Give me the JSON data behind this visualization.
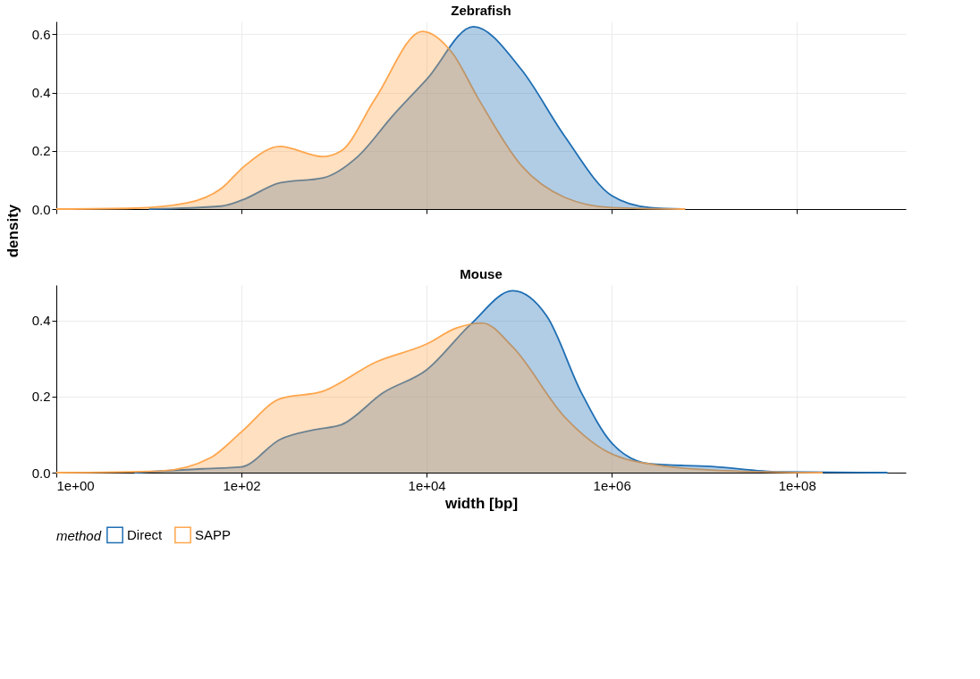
{
  "chart_data": [
    {
      "type": "area",
      "title": "Zebrafish",
      "ylabel": "density",
      "legend_title": "method",
      "log": "x",
      "xlim": [
        1,
        1500000000
      ],
      "xticks": [
        1,
        100,
        10000,
        1000000,
        100000000
      ],
      "ylim": [
        0,
        0.644
      ],
      "yticks": [
        {
          "value": 0,
          "label": "0.0"
        },
        {
          "value": 0.2,
          "label": "0.2"
        },
        {
          "value": 0.4,
          "label": "0.4"
        },
        {
          "value": 0.6,
          "label": "0.6"
        }
      ],
      "grid": true,
      "tick_labels": "y",
      "legend": "bottom",
      "series": [
        {
          "name": "Direct",
          "color": "#1f6fb4",
          "x": [
            10,
            60,
            100,
            260,
            760,
            1800,
            4300,
            10000,
            32000,
            105000,
            310000,
            1000000,
            2600000,
            6200000
          ],
          "values": [
            0,
            0.01,
            0.03,
            0.09,
            0.107,
            0.18,
            0.32,
            0.445,
            0.626,
            0.48,
            0.25,
            0.046,
            0.005,
            0
          ]
        },
        {
          "name": "SAPP",
          "color": "#ffa64d",
          "x": [
            1,
            7,
            25,
            60,
            110,
            260,
            760,
            1200,
            2800,
            9000,
            19000,
            36000,
            105000,
            310000,
            1000000,
            6200000
          ],
          "values": [
            0,
            0.003,
            0.02,
            0.07,
            0.15,
            0.215,
            0.18,
            0.2,
            0.38,
            0.61,
            0.535,
            0.38,
            0.15,
            0.04,
            0.005,
            0
          ]
        }
      ]
    },
    {
      "type": "area",
      "title": "Mouse",
      "xlabel": "width [bp]",
      "log": "x",
      "xlim": [
        1,
        1500000000
      ],
      "xticks": [
        {
          "value": 1,
          "label": "1e+00"
        },
        {
          "value": 100,
          "label": "1e+02"
        },
        {
          "value": 10000,
          "label": "1e+04"
        },
        {
          "value": 1000000,
          "label": "1e+06"
        },
        {
          "value": 100000000,
          "label": "1e+08"
        }
      ],
      "ylim": [
        0,
        0.493
      ],
      "yticks": [
        {
          "value": 0,
          "label": "0.0"
        },
        {
          "value": 0.2,
          "label": "0.2"
        },
        {
          "value": 0.4,
          "label": "0.4"
        }
      ],
      "grid": true,
      "series": [
        {
          "name": "Direct",
          "color": "#1f6fb4",
          "x": [
            7,
            38,
            100,
            260,
            620,
            1200,
            3400,
            10000,
            30000,
            85000,
            200000,
            470000,
            1000000,
            2600000,
            12000000,
            65000000,
            950000000
          ],
          "values": [
            0,
            0.01,
            0.015,
            0.087,
            0.113,
            0.126,
            0.21,
            0.27,
            0.39,
            0.478,
            0.41,
            0.21,
            0.078,
            0.023,
            0.016,
            0.002,
            0
          ]
        },
        {
          "name": "SAPP",
          "color": "#ffa64d",
          "x": [
            1,
            13,
            47,
            100,
            260,
            760,
            2800,
            10000,
            21000,
            40000,
            85000,
            310000,
            1000000,
            4000000,
            22000000,
            190000000
          ],
          "values": [
            0,
            0.004,
            0.04,
            0.107,
            0.194,
            0.214,
            0.29,
            0.338,
            0.38,
            0.393,
            0.33,
            0.146,
            0.049,
            0.016,
            0.004,
            0
          ]
        }
      ]
    }
  ]
}
